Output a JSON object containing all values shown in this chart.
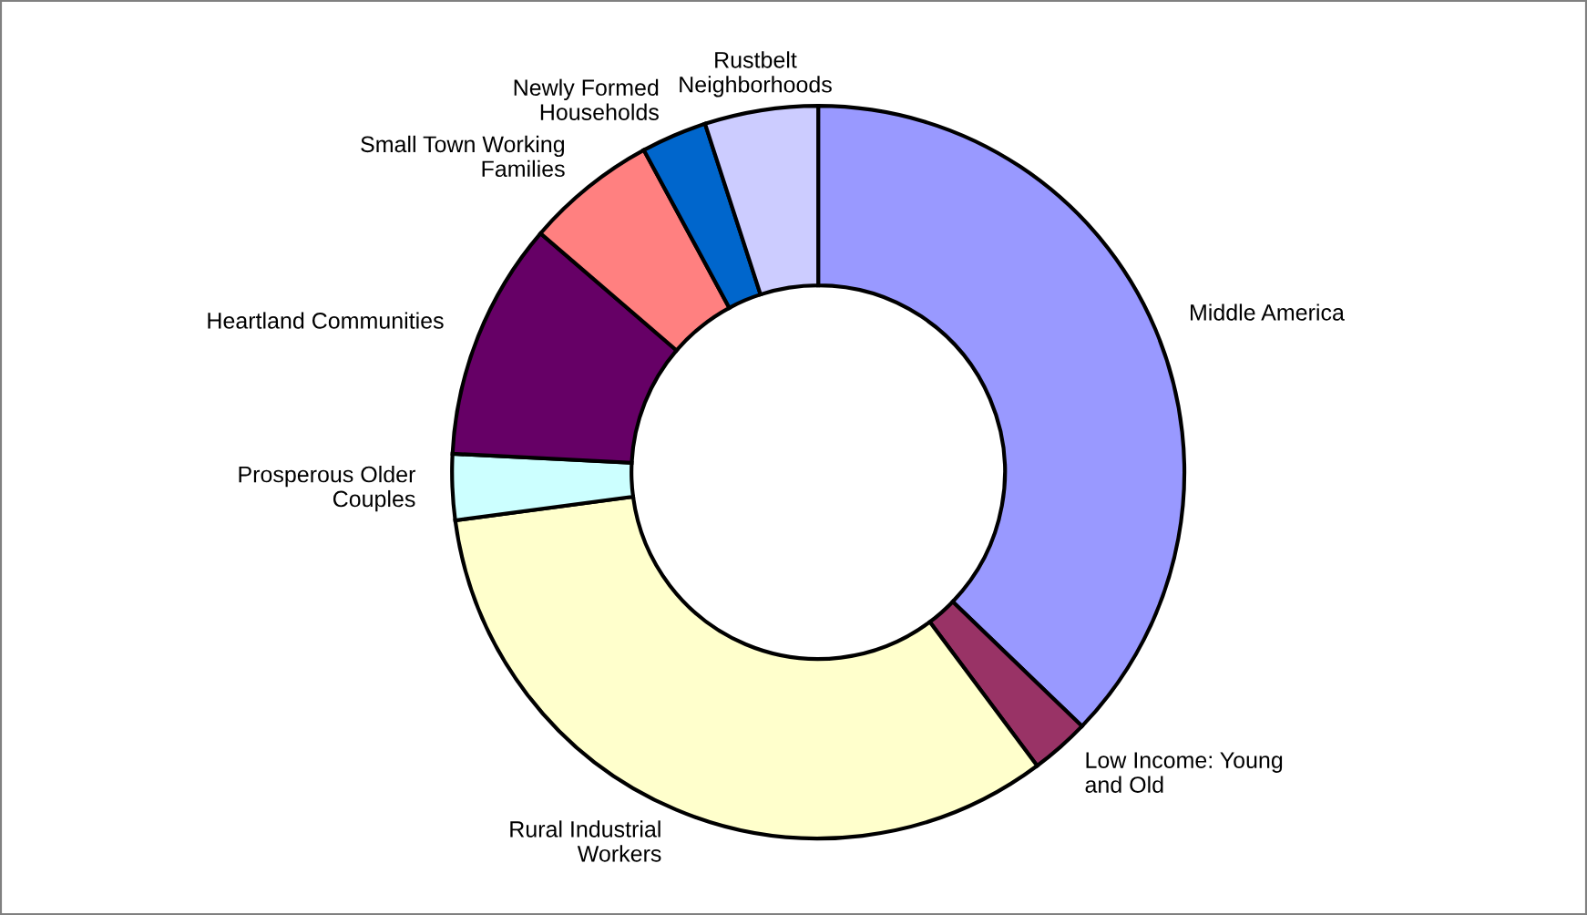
{
  "chart_data": {
    "type": "donut",
    "categories": [
      "Middle America",
      "Low Income: Young\nand Old",
      "Rural Industrial\nWorkers",
      "Prosperous Older\nCouples",
      "Heartland Communities",
      "Small Town Working\nFamilies",
      "Newly Formed\nHouseholds",
      "Rustbelt\nNeighborhoods"
    ],
    "values": [
      37.2,
      2.6,
      33.1,
      2.9,
      10.5,
      5.8,
      2.9,
      5.0
    ],
    "colors": [
      "#9999ff",
      "#993366",
      "#ffffcc",
      "#ccffff",
      "#660066",
      "#ff8080",
      "#0066cc",
      "#ccccff"
    ],
    "legend": false
  }
}
